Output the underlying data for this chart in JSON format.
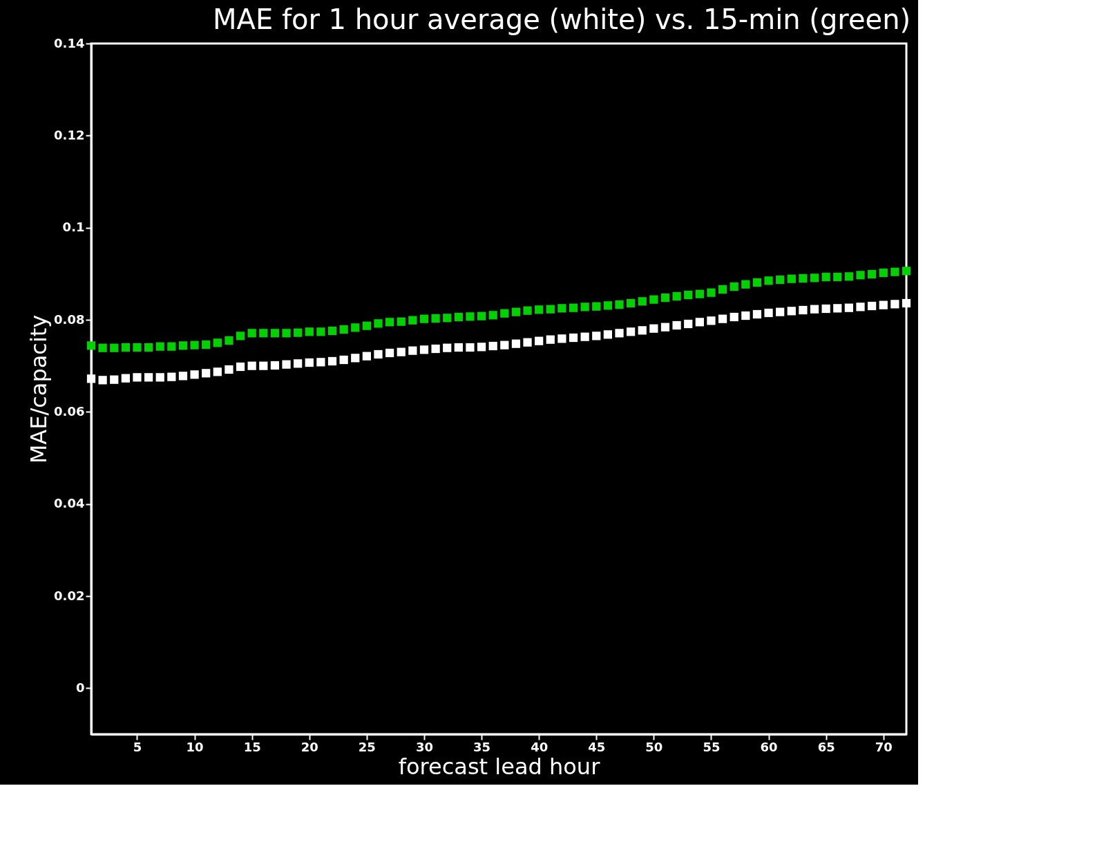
{
  "chart_data": {
    "type": "scatter",
    "title": "MAE for 1 hour average (white) vs. 15-min (green)",
    "xlabel": "forecast lead hour",
    "ylabel": "MAE/capacity",
    "x": [
      1,
      2,
      3,
      4,
      5,
      6,
      7,
      8,
      9,
      10,
      11,
      12,
      13,
      14,
      15,
      16,
      17,
      18,
      19,
      20,
      21,
      22,
      23,
      24,
      25,
      26,
      27,
      28,
      29,
      30,
      31,
      32,
      33,
      34,
      35,
      36,
      37,
      38,
      39,
      40,
      41,
      42,
      43,
      44,
      45,
      46,
      47,
      48,
      49,
      50,
      51,
      52,
      53,
      54,
      55,
      56,
      57,
      58,
      59,
      60,
      61,
      62,
      63,
      64,
      65,
      66,
      67,
      68,
      69,
      70,
      71,
      72
    ],
    "series": [
      {
        "color": "#ffffff",
        "values": [
          0.0672,
          0.0669,
          0.067,
          0.0673,
          0.0675,
          0.0675,
          0.0675,
          0.0676,
          0.0678,
          0.0681,
          0.0684,
          0.0687,
          0.0692,
          0.0698,
          0.07,
          0.07,
          0.0701,
          0.0703,
          0.0705,
          0.0707,
          0.0708,
          0.071,
          0.0713,
          0.0717,
          0.0721,
          0.0725,
          0.0728,
          0.073,
          0.0733,
          0.0735,
          0.0737,
          0.0739,
          0.074,
          0.074,
          0.0741,
          0.0743,
          0.0745,
          0.0748,
          0.0751,
          0.0754,
          0.0757,
          0.0759,
          0.0761,
          0.0763,
          0.0765,
          0.0768,
          0.0771,
          0.0774,
          0.0777,
          0.0781,
          0.0784,
          0.0788,
          0.0791,
          0.0795,
          0.0798,
          0.0802,
          0.0806,
          0.0809,
          0.0812,
          0.0815,
          0.0817,
          0.0819,
          0.0821,
          0.0823,
          0.0824,
          0.0825,
          0.0826,
          0.0828,
          0.083,
          0.0832,
          0.0834,
          0.0836
        ]
      },
      {
        "color": "#00d200",
        "values": [
          0.0744,
          0.0739,
          0.0739,
          0.074,
          0.074,
          0.074,
          0.0742,
          0.0742,
          0.0744,
          0.0745,
          0.0746,
          0.075,
          0.0755,
          0.0765,
          0.0771,
          0.0771,
          0.0771,
          0.0771,
          0.0772,
          0.0774,
          0.0774,
          0.0776,
          0.0779,
          0.0783,
          0.0787,
          0.0792,
          0.0795,
          0.0796,
          0.0799,
          0.0802,
          0.0803,
          0.0804,
          0.0806,
          0.0807,
          0.0808,
          0.081,
          0.0814,
          0.0817,
          0.082,
          0.0822,
          0.0823,
          0.0825,
          0.0826,
          0.0828,
          0.0829,
          0.0831,
          0.0833,
          0.0836,
          0.084,
          0.0844,
          0.0848,
          0.0851,
          0.0854,
          0.0856,
          0.0859,
          0.0866,
          0.0872,
          0.0877,
          0.0881,
          0.0885,
          0.0887,
          0.0889,
          0.089,
          0.0891,
          0.0893,
          0.0893,
          0.0894,
          0.0897,
          0.0899,
          0.0902,
          0.0904,
          0.0906
        ]
      }
    ],
    "xlim": [
      1,
      72
    ],
    "xticks": [
      5,
      10,
      15,
      20,
      25,
      30,
      35,
      40,
      45,
      50,
      55,
      60,
      65,
      70
    ],
    "ylim": [
      -0.01,
      0.14
    ],
    "yticks": [
      0,
      0.02,
      0.04,
      0.06,
      0.08,
      0.1,
      0.12,
      0.14
    ],
    "marker": "square",
    "grid": false,
    "legend": false
  }
}
